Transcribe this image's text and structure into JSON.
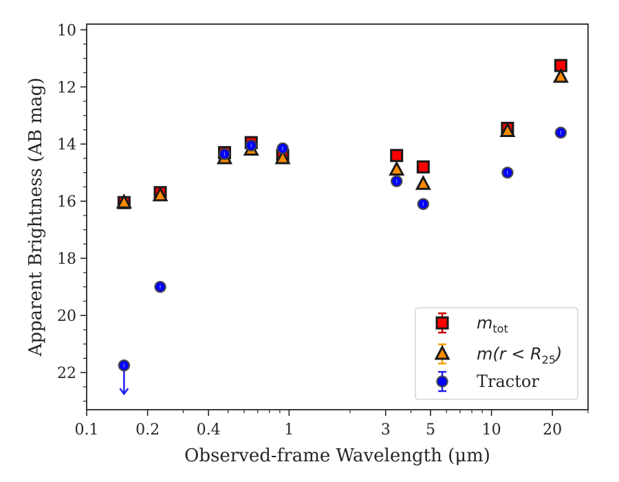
{
  "chart_data": {
    "type": "scatter",
    "xlabel": "Observed-frame Wavelength (μm)",
    "ylabel": "Apparent Brightness (AB mag)",
    "xscale": "log",
    "xlim": [
      0.1,
      30
    ],
    "ylim": [
      23.3,
      9.8
    ],
    "y_inverted": true,
    "x_ticks": [
      {
        "value": 0.1,
        "label": "0.1"
      },
      {
        "value": 0.2,
        "label": "0.2"
      },
      {
        "value": 0.4,
        "label": "0.4"
      },
      {
        "value": 1,
        "label": "1"
      },
      {
        "value": 3,
        "label": "3"
      },
      {
        "value": 5,
        "label": "5"
      },
      {
        "value": 10,
        "label": "10"
      },
      {
        "value": 20,
        "label": "20"
      }
    ],
    "y_ticks": [
      {
        "value": 10,
        "label": "10"
      },
      {
        "value": 12,
        "label": "12"
      },
      {
        "value": 14,
        "label": "14"
      },
      {
        "value": 16,
        "label": "16"
      },
      {
        "value": 18,
        "label": "18"
      },
      {
        "value": 20,
        "label": "20"
      },
      {
        "value": 22,
        "label": "22"
      }
    ],
    "grid": false,
    "legend_position": "bottom-right",
    "series": [
      {
        "name": "m_tot",
        "marker": "square",
        "color": "#ff0000",
        "edge_color": "#1a1a1a",
        "error_color": "#cc0000",
        "x": [
          0.153,
          0.231,
          0.48,
          0.65,
          0.93,
          3.4,
          4.6,
          12.0,
          22.0
        ],
        "y": [
          16.05,
          15.7,
          14.3,
          13.95,
          14.4,
          14.4,
          14.8,
          13.45,
          11.25
        ]
      },
      {
        "name": "m(r < R25)",
        "marker": "triangle",
        "color": "#ff8c00",
        "edge_color": "#1a1a1a",
        "error_color": "#f0a000",
        "x": [
          0.153,
          0.231,
          0.48,
          0.65,
          0.93,
          3.4,
          4.6,
          12.0,
          22.0
        ],
        "y": [
          16.05,
          15.8,
          14.5,
          14.2,
          14.5,
          14.9,
          15.4,
          13.55,
          11.65
        ]
      },
      {
        "name": "Tractor",
        "marker": "circle",
        "color": "#0000ff",
        "edge_color": "#404040",
        "error_color": "#2020ee",
        "x": [
          0.153,
          0.231,
          0.48,
          0.65,
          0.93,
          3.4,
          4.6,
          12.0,
          22.0
        ],
        "y": [
          21.75,
          19.0,
          14.35,
          14.05,
          14.15,
          15.3,
          16.1,
          15.0,
          13.6
        ],
        "upper_limit_index": 0,
        "upper_limit_to": 22.75
      }
    ],
    "legend": {
      "entries": [
        {
          "marker": "square",
          "prefix": "m",
          "subscript": "tot",
          "suffix": ""
        },
        {
          "marker": "triangle",
          "prefix": "m(r < R",
          "subscript": "25",
          "suffix": ")"
        },
        {
          "marker": "circle",
          "prefix": "",
          "subscript": "",
          "suffix": "",
          "text": "Tractor"
        }
      ]
    }
  }
}
